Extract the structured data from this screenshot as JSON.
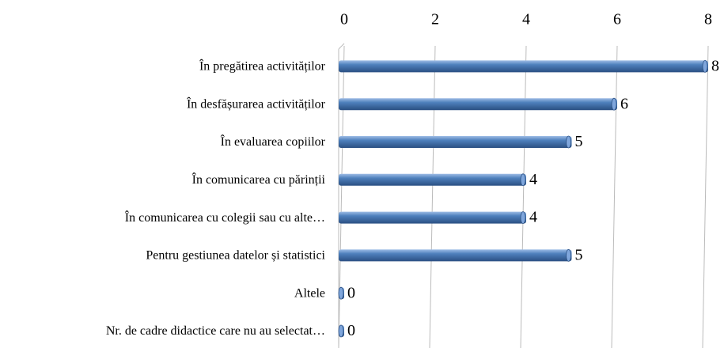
{
  "chart_data": {
    "type": "bar",
    "orientation": "horizontal",
    "categories": [
      "În pregătirea activităților",
      "În desfășurarea activităților",
      "În evaluarea copiilor",
      "În comunicarea cu părinții",
      "În comunicarea cu colegii sau cu alte…",
      "Pentru gestiunea datelor și statistici",
      "Altele",
      "Nr.  de cadre didactice care nu au selectat…"
    ],
    "values": [
      8,
      6,
      5,
      4,
      4,
      5,
      0,
      0
    ],
    "color": "#4f81bd",
    "xlim": [
      0,
      8
    ],
    "xticks": [
      0,
      2,
      4,
      6,
      8
    ],
    "grid": true
  }
}
